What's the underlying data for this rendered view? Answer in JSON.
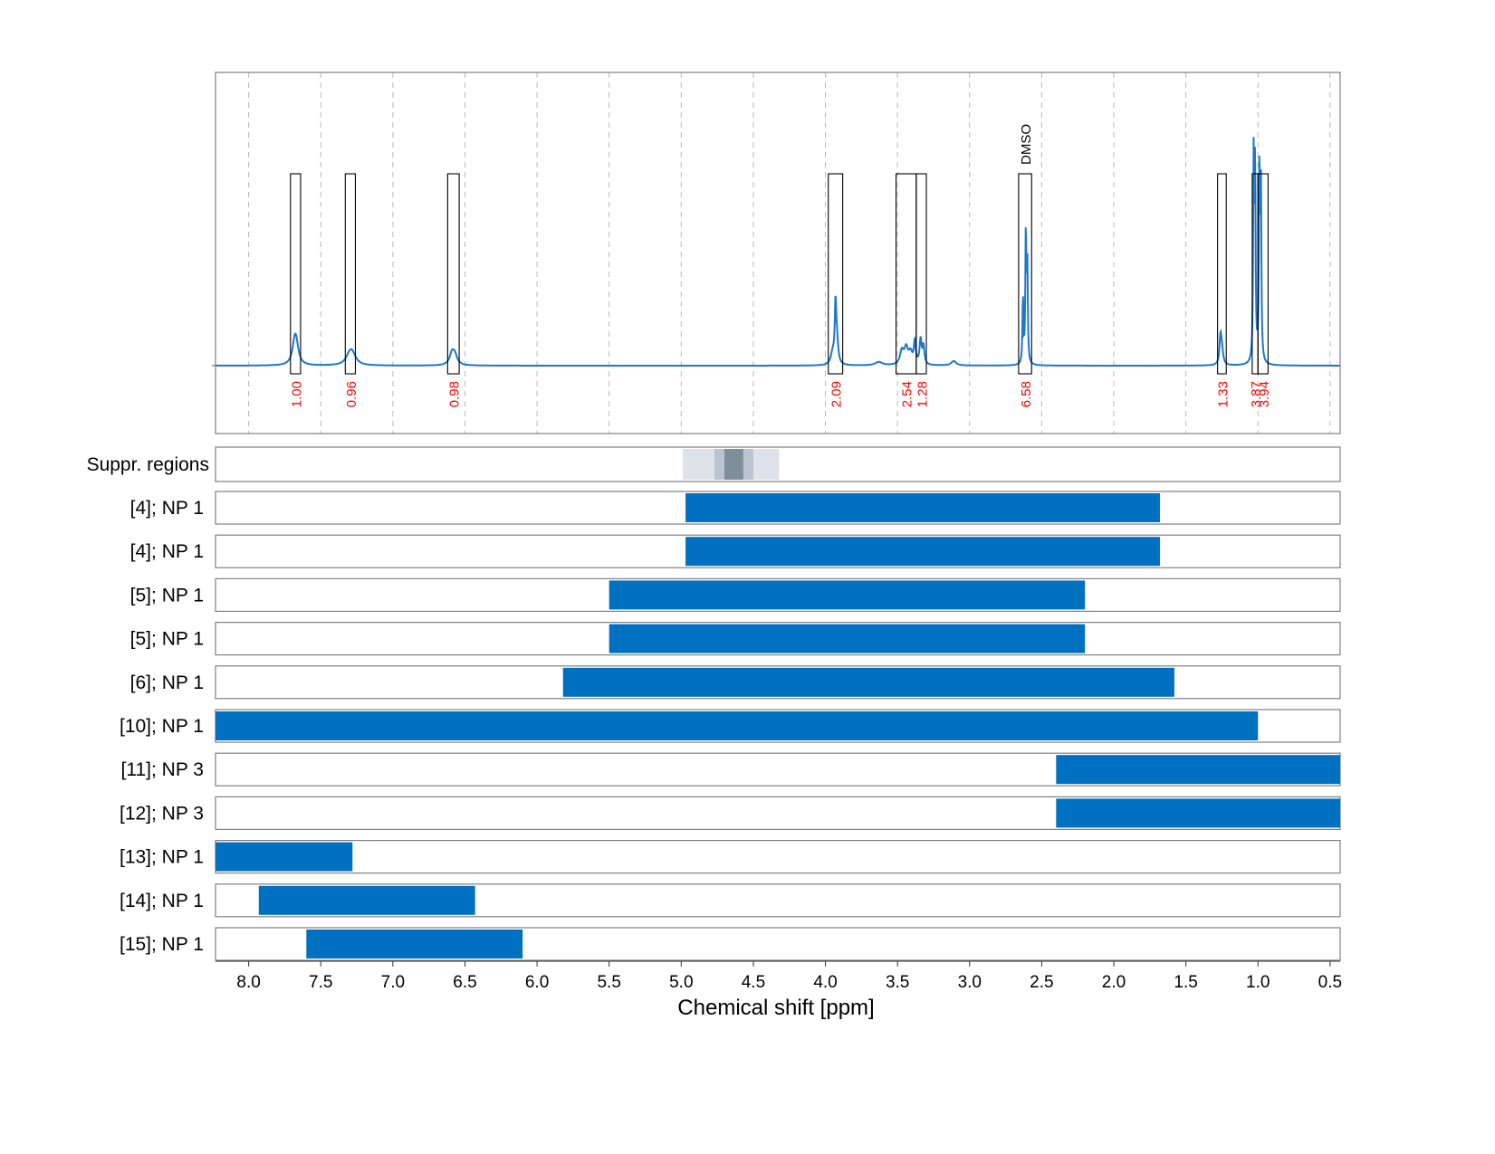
{
  "chart_data": {
    "type": "area",
    "x_axis": {
      "label": "Chemical shift [ppm]",
      "reversed": true,
      "xlim": [
        8.23,
        0.43
      ],
      "ticks": [
        8.0,
        7.5,
        7.0,
        6.5,
        6.0,
        5.5,
        5.0,
        4.5,
        4.0,
        3.5,
        3.0,
        2.5,
        2.0,
        1.5,
        1.0,
        0.5
      ],
      "tick_labels": [
        "8.0",
        "7.5",
        "7.0",
        "6.5",
        "6.0",
        "5.5",
        "5.0",
        "4.5",
        "4.0",
        "3.5",
        "3.0",
        "2.5",
        "2.0",
        "1.5",
        "1.0",
        "0.5"
      ]
    },
    "grid": "vertical dashed at ticks (spectrum panel)",
    "spectrum": {
      "color": "#1f77c9",
      "baseline": 0.0,
      "peaks": [
        {
          "center": 7.68,
          "height": 0.09,
          "width": 0.02
        },
        {
          "center": 7.67,
          "height": 0.06,
          "width": 0.02
        },
        {
          "center": 7.3,
          "height": 0.04,
          "width": 0.03
        },
        {
          "center": 7.28,
          "height": 0.04,
          "width": 0.03
        },
        {
          "center": 6.59,
          "height": 0.05,
          "width": 0.02
        },
        {
          "center": 6.57,
          "height": 0.04,
          "width": 0.02
        },
        {
          "center": 3.93,
          "height": 0.25,
          "width": 0.006
        },
        {
          "center": 3.92,
          "height": 0.1,
          "width": 0.01
        },
        {
          "center": 3.95,
          "height": 0.05,
          "width": 0.015
        },
        {
          "center": 3.63,
          "height": 0.015,
          "width": 0.03
        },
        {
          "center": 3.47,
          "height": 0.06,
          "width": 0.015
        },
        {
          "center": 3.44,
          "height": 0.07,
          "width": 0.015
        },
        {
          "center": 3.41,
          "height": 0.05,
          "width": 0.015
        },
        {
          "center": 3.38,
          "height": 0.1,
          "width": 0.008
        },
        {
          "center": 3.34,
          "height": 0.11,
          "width": 0.008
        },
        {
          "center": 3.32,
          "height": 0.08,
          "width": 0.008
        },
        {
          "center": 3.11,
          "height": 0.02,
          "width": 0.02
        },
        {
          "center": 2.63,
          "height": 0.29,
          "width": 0.004
        },
        {
          "center": 2.61,
          "height": 0.58,
          "width": 0.004
        },
        {
          "center": 2.6,
          "height": 0.45,
          "width": 0.004
        },
        {
          "center": 1.26,
          "height": 0.12,
          "width": 0.008
        },
        {
          "center": 1.25,
          "height": 0.06,
          "width": 0.01
        },
        {
          "center": 1.03,
          "height": 0.88,
          "width": 0.004
        },
        {
          "center": 1.02,
          "height": 0.85,
          "width": 0.004
        },
        {
          "center": 0.99,
          "height": 0.86,
          "width": 0.004
        },
        {
          "center": 0.98,
          "height": 0.8,
          "width": 0.004
        }
      ],
      "integration_regions": [
        {
          "start": 7.71,
          "end": 7.64,
          "label": "1.00"
        },
        {
          "start": 7.33,
          "end": 7.26,
          "label": "0.96"
        },
        {
          "start": 6.62,
          "end": 6.54,
          "label": "0.98"
        },
        {
          "start": 3.98,
          "end": 3.88,
          "label": "2.09"
        },
        {
          "start": 3.51,
          "end": 3.37,
          "label": "2.54"
        },
        {
          "start": 3.37,
          "end": 3.3,
          "label": "1.28"
        },
        {
          "start": 2.66,
          "end": 2.57,
          "label": "6.58",
          "annotation": "DMSO"
        },
        {
          "start": 1.28,
          "end": 1.22,
          "label": "1.33"
        },
        {
          "start": 1.04,
          "end": 1.0,
          "label": "3.87"
        },
        {
          "start": 1.0,
          "end": 0.93,
          "label": "3.94"
        }
      ],
      "label_color": "#ff0000"
    },
    "suppressed_regions": {
      "label": "Suppr. regions",
      "bands": [
        {
          "start": 4.99,
          "end": 4.32,
          "shade": "#dde3e9"
        },
        {
          "start": 4.77,
          "end": 4.5,
          "shade": "#b9c4ce"
        },
        {
          "start": 4.7,
          "end": 4.57,
          "shade": "#7f8e9b"
        }
      ]
    },
    "series": [
      {
        "name": "[4]; NP 1",
        "start": 4.97,
        "end": 1.68
      },
      {
        "name": "[4]; NP 1",
        "start": 4.97,
        "end": 1.68
      },
      {
        "name": "[5]; NP 1",
        "start": 5.5,
        "end": 2.2
      },
      {
        "name": "[5]; NP 1",
        "start": 5.5,
        "end": 2.2
      },
      {
        "name": "[6]; NP 1",
        "start": 5.82,
        "end": 1.58
      },
      {
        "name": "[10]; NP 1",
        "start": 8.23,
        "end": 1.0
      },
      {
        "name": "[11]; NP 3",
        "start": 2.4,
        "end": 0.43
      },
      {
        "name": "[12]; NP 3",
        "start": 2.4,
        "end": 0.43
      },
      {
        "name": "[13]; NP 1",
        "start": 8.23,
        "end": 7.28
      },
      {
        "name": "[14]; NP 1",
        "start": 7.93,
        "end": 6.43
      },
      {
        "name": "[15]; NP 1",
        "start": 7.6,
        "end": 6.1
      }
    ],
    "bar_color": "#0070c0"
  }
}
